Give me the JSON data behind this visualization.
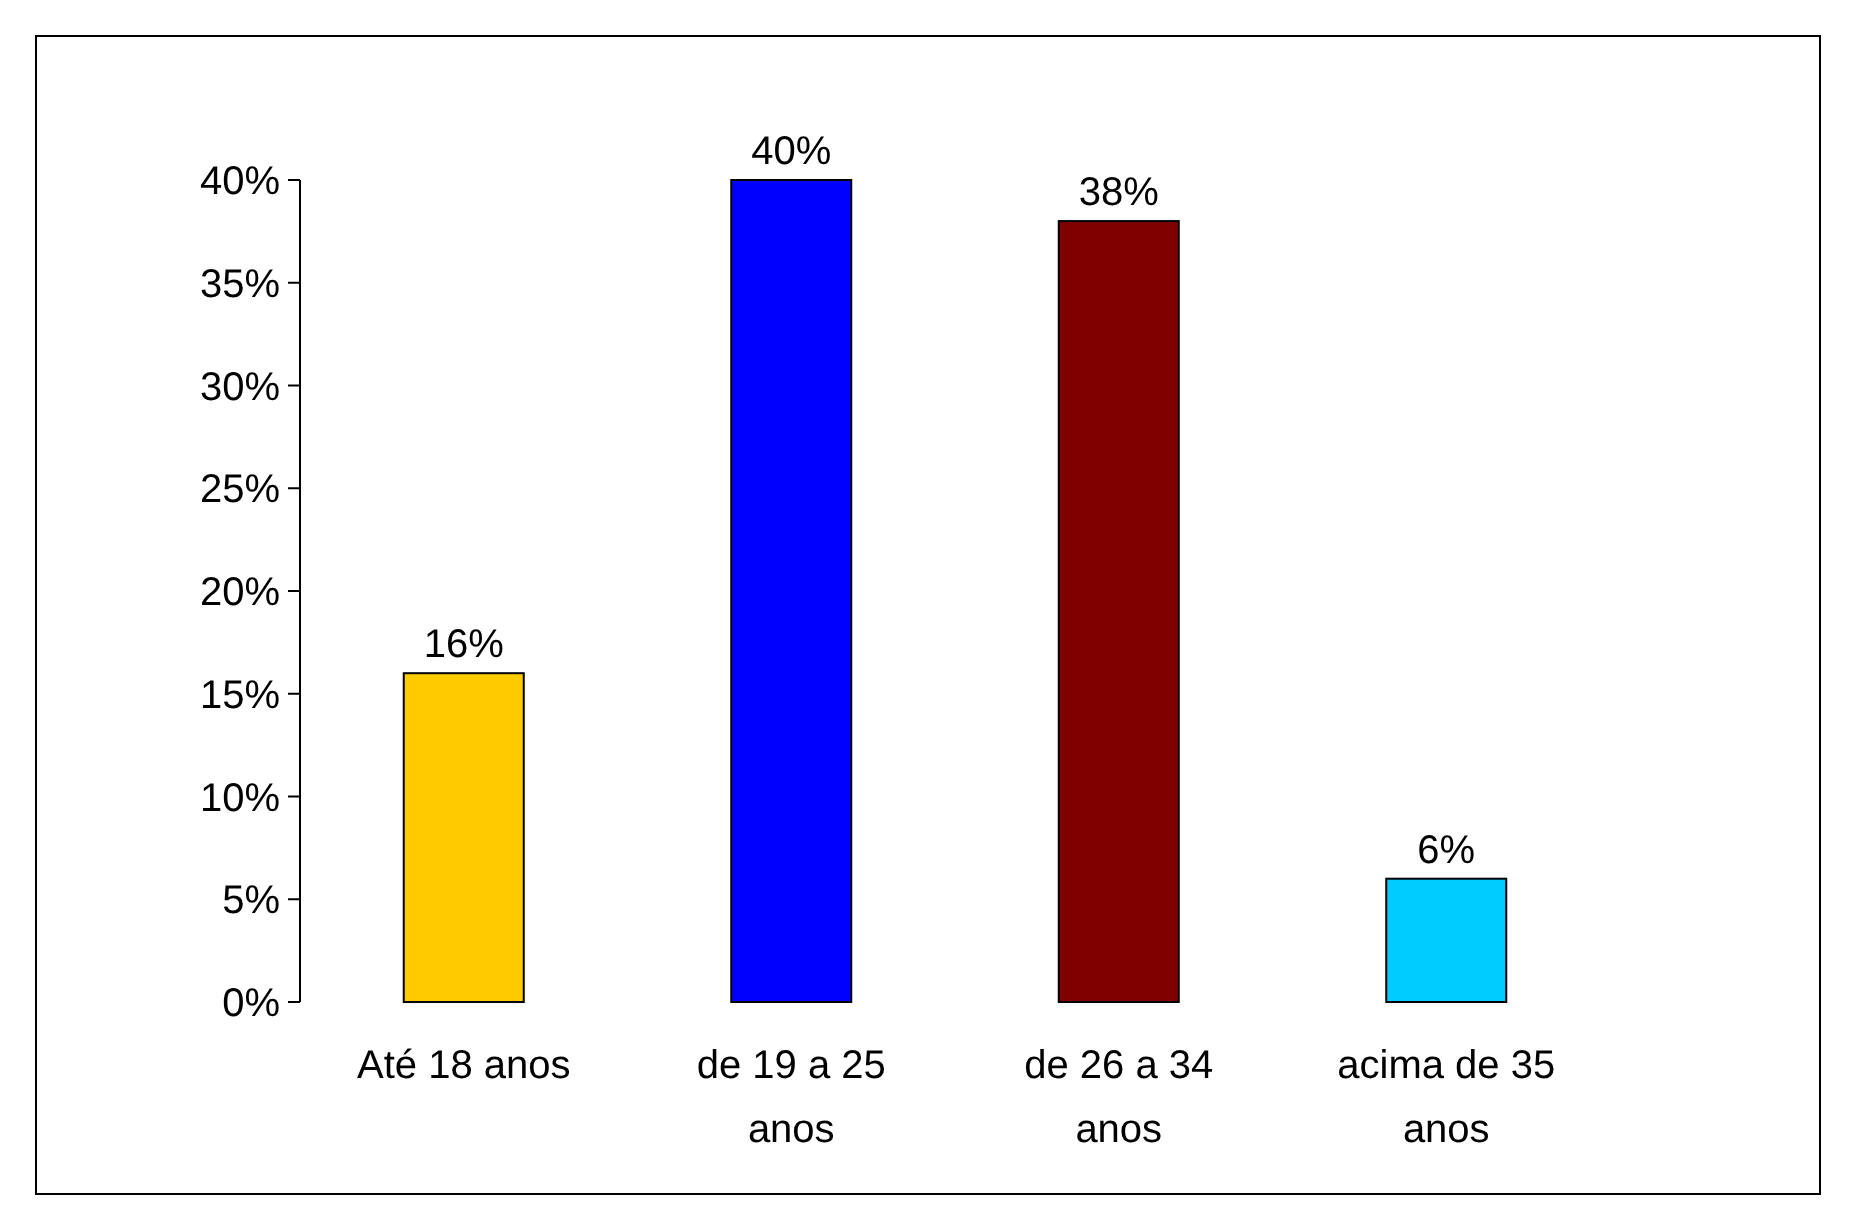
{
  "chart_data": {
    "type": "bar",
    "categories": [
      "Até 18 anos",
      "de 19 a 25 anos",
      "de 26 a 34 anos",
      "acima de 35 anos"
    ],
    "values": [
      16,
      40,
      38,
      6
    ],
    "colors": [
      "#ffcc00",
      "#0000ff",
      "#800000",
      "#00ccff"
    ],
    "value_labels": [
      "16%",
      "40%",
      "38%",
      "6%"
    ],
    "ylim": [
      0,
      40
    ],
    "yticks": [
      {
        "value": 0,
        "label": "0%"
      },
      {
        "value": 5,
        "label": "5%"
      },
      {
        "value": 10,
        "label": "10%"
      },
      {
        "value": 15,
        "label": "15%"
      },
      {
        "value": 20,
        "label": "20%"
      },
      {
        "value": 25,
        "label": "25%"
      },
      {
        "value": 30,
        "label": "30%"
      },
      {
        "value": 35,
        "label": "35%"
      },
      {
        "value": 40,
        "label": "40%"
      }
    ],
    "grid": false
  }
}
